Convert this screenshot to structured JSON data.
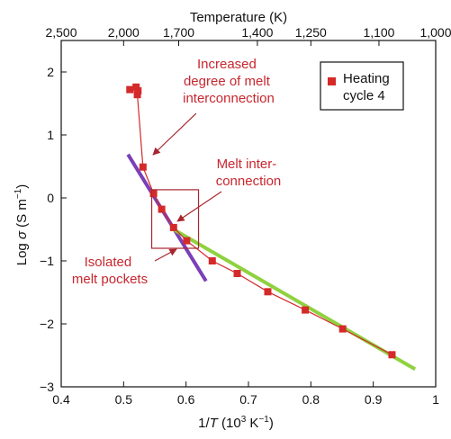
{
  "chart_data": {
    "type": "scatter",
    "xlim": [
      0.4,
      1.0
    ],
    "ylim": [
      -3,
      2.5
    ],
    "x_ticks": [
      0.4,
      0.5,
      0.6,
      0.7,
      0.8,
      0.9,
      1.0
    ],
    "x_tick_labels": [
      "0.4",
      "0.5",
      "0.6",
      "0.7",
      "0.8",
      "0.9",
      "1"
    ],
    "y_ticks": [
      -3,
      -2,
      -1,
      0,
      1,
      2
    ],
    "y_tick_labels": [
      "−3",
      "−2",
      "−1",
      "0",
      "1",
      "2"
    ],
    "top_ticks": [
      2500,
      2000,
      1700,
      1400,
      1250,
      1100,
      1000
    ],
    "top_tick_labels": [
      "2,500",
      "2,000",
      "1,700",
      "1,400",
      "1,250",
      "1,100",
      "1,000"
    ],
    "xlabel": "1/T (10³ K⁻¹)",
    "xlabel_parts": {
      "prefix": "1/",
      "var": "T",
      "mid": " (10",
      "sup1": "3",
      "mid2": " K",
      "sup2": "−1",
      "suffix": ")"
    },
    "ylabel": "Log σ (S m⁻¹)",
    "ylabel_parts": {
      "prefix": "Log ",
      "var": "σ",
      "mid": " (S m",
      "sup": "−1",
      "suffix": ")"
    },
    "top_label": "Temperature (K)",
    "grid": false,
    "legend": {
      "position": "top-right",
      "line1": "Heating",
      "line2": "cycle 4"
    },
    "series": [
      {
        "name": "Heating cycle 4",
        "color": "#d42a2a",
        "marker": "square",
        "x": [
          0.51,
          0.52,
          0.523,
          0.522,
          0.531,
          0.548,
          0.561,
          0.58,
          0.601,
          0.642,
          0.682,
          0.731,
          0.791,
          0.851,
          0.93
        ],
        "y": [
          1.72,
          1.76,
          1.7,
          1.64,
          0.49,
          0.07,
          -0.18,
          -0.47,
          -0.68,
          -1.0,
          -1.2,
          -1.49,
          -1.78,
          -2.08,
          -2.49
        ]
      }
    ],
    "fit_lines": [
      {
        "color": "#7b3fb8",
        "x": [
          0.507,
          0.632
        ],
        "y": [
          0.69,
          -1.32
        ]
      },
      {
        "color": "#8fd13f",
        "x": [
          0.58,
          0.967
        ],
        "y": [
          -0.5,
          -2.72
        ]
      }
    ],
    "annotations": [
      {
        "lines": [
          "Increased",
          "degree of melt",
          "interconnection"
        ],
        "color": "#c8262e"
      },
      {
        "lines": [
          "Melt inter-",
          "connection"
        ],
        "color": "#c8262e"
      },
      {
        "lines": [
          "Isolated",
          "melt pockets"
        ],
        "color": "#c8262e"
      }
    ],
    "highlight_box": {
      "color": "#a8262e",
      "x": [
        0.545,
        0.62
      ],
      "y": [
        -0.8,
        0.13
      ]
    }
  }
}
